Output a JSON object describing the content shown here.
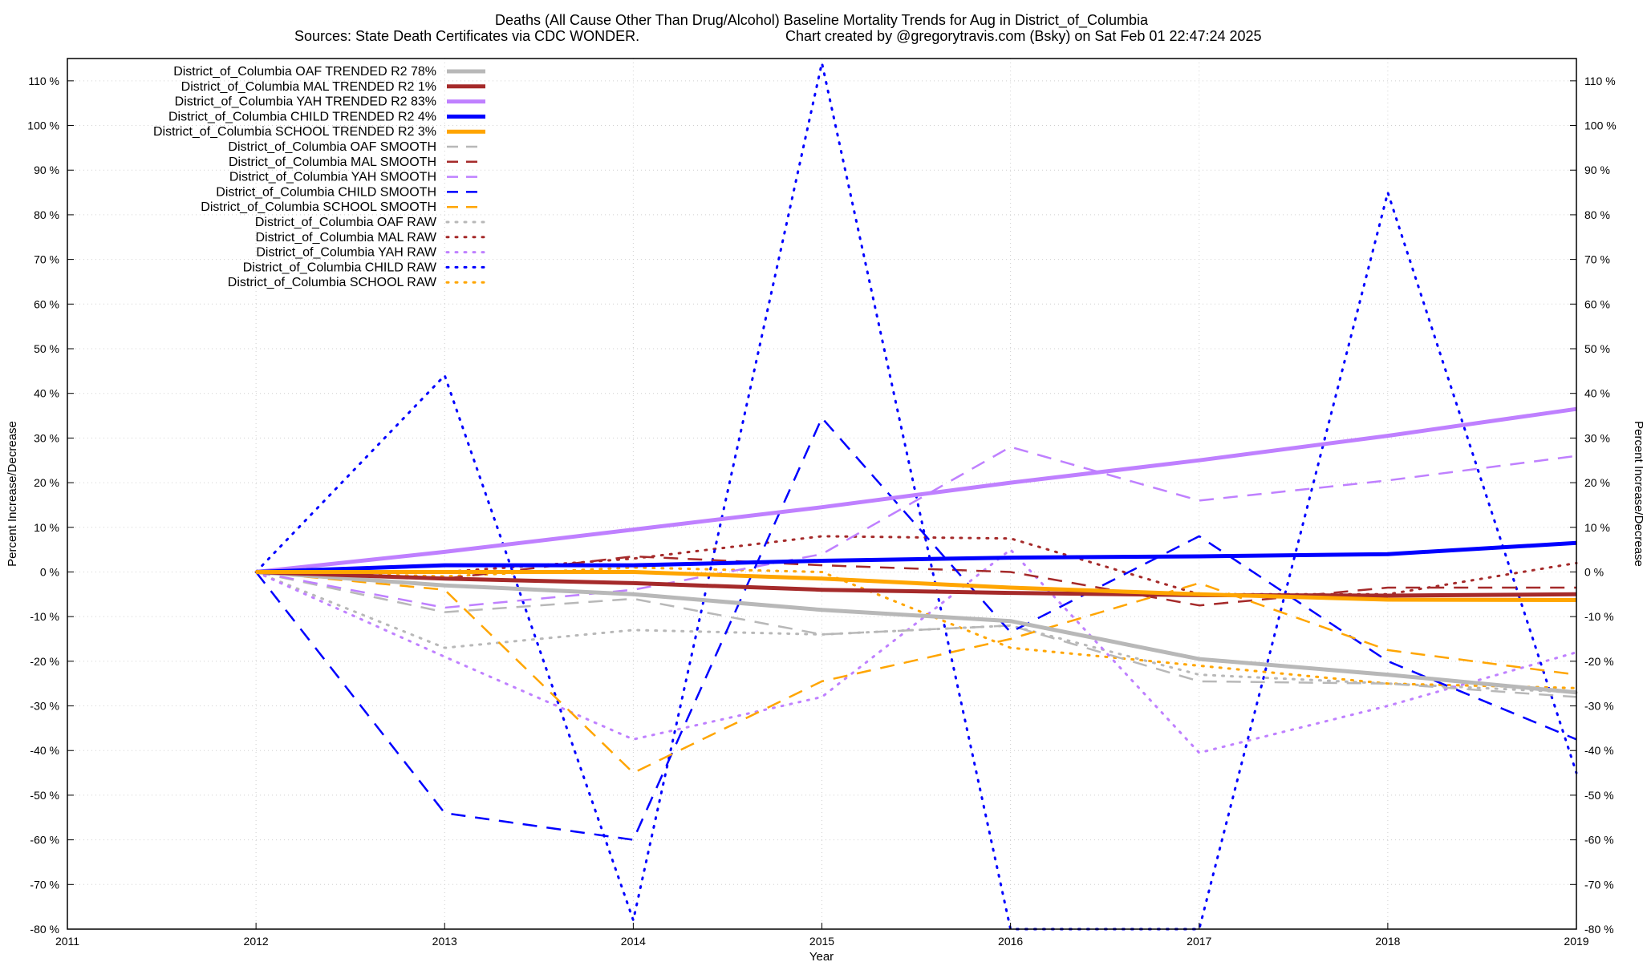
{
  "chart_data": {
    "type": "line",
    "title": "Deaths (All Cause Other Than Drug/Alcohol)  Baseline Mortality Trends for Aug in District_of_Columbia",
    "subtitle_left": "Sources: State Death Certificates via CDC WONDER.",
    "subtitle_right": "Chart created by @gregorytravis.com (Bsky) on Sat Feb 01 22:47:24 2025",
    "xlabel": "Year",
    "ylabel": "Percent Increase/Decrease",
    "y2label": "Percent Increase/Decrease",
    "xlim": [
      2011,
      2019
    ],
    "ylim": [
      -80,
      115
    ],
    "xticks": [
      2011,
      2012,
      2013,
      2014,
      2015,
      2016,
      2017,
      2018,
      2019
    ],
    "xtick_labels": [
      "2011",
      "2012",
      "2013",
      "2014",
      "2015",
      "2016",
      "2017",
      "2018",
      "2019"
    ],
    "yticks": [
      110,
      100,
      90,
      80,
      70,
      60,
      50,
      40,
      30,
      20,
      10,
      0,
      -10,
      -20,
      -30,
      -40,
      -50,
      -60,
      -70,
      -80
    ],
    "ytick_labels": [
      "110 %",
      "100 %",
      "90 %",
      "80 %",
      "70 %",
      "60 %",
      "50 %",
      "40 %",
      "30 %",
      "20 %",
      "10 %",
      "0 %",
      "-10 %",
      "-20 %",
      "-30 %",
      "-40 %",
      "-50 %",
      "-60 %",
      "-70 %",
      "-80 %"
    ],
    "grid": true,
    "legend_position": "top-left",
    "series": [
      {
        "name": "District_of_Columbia OAF TRENDED R2  78%",
        "style": "solid",
        "color": "#b8b8b8",
        "points": [
          [
            2012,
            0
          ],
          [
            2013,
            -3
          ],
          [
            2014,
            -5
          ],
          [
            2015,
            -8.5
          ],
          [
            2016,
            -11
          ],
          [
            2017,
            -19.5
          ],
          [
            2018,
            -23
          ],
          [
            2019,
            -27
          ]
        ]
      },
      {
        "name": "District_of_Columbia MAL TRENDED R2   1%",
        "style": "solid",
        "color": "#a52a2a",
        "points": [
          [
            2012,
            0
          ],
          [
            2013,
            -1.5
          ],
          [
            2014,
            -2.5
          ],
          [
            2015,
            -4
          ],
          [
            2016,
            -4.7
          ],
          [
            2017,
            -5.2
          ],
          [
            2018,
            -5.3
          ],
          [
            2019,
            -5
          ]
        ]
      },
      {
        "name": "District_of_Columbia YAH TRENDED R2  83%",
        "style": "solid",
        "color": "#bf80ff",
        "points": [
          [
            2012,
            0
          ],
          [
            2013,
            4.5
          ],
          [
            2014,
            9.5
          ],
          [
            2015,
            14.5
          ],
          [
            2016,
            20
          ],
          [
            2017,
            25
          ],
          [
            2018,
            30.5
          ],
          [
            2019,
            36.5
          ]
        ]
      },
      {
        "name": "District_of_Columbia CHILD TRENDED R2   4%",
        "style": "solid",
        "color": "#0000ff",
        "points": [
          [
            2012,
            0
          ],
          [
            2013,
            1.5
          ],
          [
            2014,
            1.5
          ],
          [
            2015,
            2.5
          ],
          [
            2016,
            3.2
          ],
          [
            2017,
            3.5
          ],
          [
            2018,
            4
          ],
          [
            2019,
            6.5
          ]
        ]
      },
      {
        "name": "District_of_Columbia SCHOOL TRENDED R2   3%",
        "style": "solid",
        "color": "#ffa500",
        "points": [
          [
            2012,
            0
          ],
          [
            2013,
            0
          ],
          [
            2014,
            0
          ],
          [
            2015,
            -1.5
          ],
          [
            2016,
            -3.5
          ],
          [
            2017,
            -5
          ],
          [
            2018,
            -6.2
          ],
          [
            2019,
            -6.3
          ]
        ]
      },
      {
        "name": "District_of_Columbia OAF SMOOTH",
        "style": "dashed",
        "color": "#b8b8b8",
        "points": [
          [
            2012,
            0
          ],
          [
            2013,
            -9
          ],
          [
            2014,
            -6
          ],
          [
            2015,
            -14
          ],
          [
            2016,
            -12
          ],
          [
            2017,
            -24.5
          ],
          [
            2018,
            -25
          ],
          [
            2019,
            -28
          ]
        ]
      },
      {
        "name": "District_of_Columbia MAL SMOOTH",
        "style": "dashed",
        "color": "#a52a2a",
        "points": [
          [
            2012,
            0
          ],
          [
            2013,
            -1.5
          ],
          [
            2014,
            3.5
          ],
          [
            2015,
            1.5
          ],
          [
            2016,
            0
          ],
          [
            2017,
            -7.5
          ],
          [
            2018,
            -3.5
          ],
          [
            2019,
            -3.5
          ]
        ]
      },
      {
        "name": "District_of_Columbia YAH SMOOTH",
        "style": "dashed",
        "color": "#bf80ff",
        "points": [
          [
            2012,
            0
          ],
          [
            2013,
            -8
          ],
          [
            2014,
            -4
          ],
          [
            2015,
            4
          ],
          [
            2016,
            28
          ],
          [
            2017,
            16
          ],
          [
            2018,
            20.5
          ],
          [
            2019,
            26
          ]
        ]
      },
      {
        "name": "District_of_Columbia CHILD SMOOTH",
        "style": "dashed",
        "color": "#0000ff",
        "points": [
          [
            2012,
            0
          ],
          [
            2013,
            -54
          ],
          [
            2014,
            -60
          ],
          [
            2015,
            34.5
          ],
          [
            2016,
            -13.5
          ],
          [
            2017,
            8
          ],
          [
            2018,
            -20
          ],
          [
            2019,
            -37.5
          ]
        ]
      },
      {
        "name": "District_of_Columbia SCHOOL SMOOTH",
        "style": "dashed",
        "color": "#ffa500",
        "points": [
          [
            2012,
            0
          ],
          [
            2013,
            -4
          ],
          [
            2014,
            -45
          ],
          [
            2015,
            -24.5
          ],
          [
            2016,
            -15
          ],
          [
            2017,
            -2.5
          ],
          [
            2018,
            -17.5
          ],
          [
            2019,
            -23
          ]
        ]
      },
      {
        "name": "District_of_Columbia OAF RAW",
        "style": "dotted",
        "color": "#b8b8b8",
        "points": [
          [
            2012,
            0
          ],
          [
            2013,
            -17
          ],
          [
            2014,
            -13
          ],
          [
            2015,
            -14
          ],
          [
            2016,
            -12
          ],
          [
            2017,
            -23
          ],
          [
            2018,
            -25
          ],
          [
            2019,
            -27
          ]
        ]
      },
      {
        "name": "District_of_Columbia MAL RAW",
        "style": "dotted",
        "color": "#a52a2a",
        "points": [
          [
            2012,
            0
          ],
          [
            2013,
            0
          ],
          [
            2014,
            3
          ],
          [
            2015,
            8
          ],
          [
            2016,
            7.5
          ],
          [
            2017,
            -5
          ],
          [
            2018,
            -5
          ],
          [
            2019,
            2
          ]
        ]
      },
      {
        "name": "District_of_Columbia YAH RAW",
        "style": "dotted",
        "color": "#bf80ff",
        "points": [
          [
            2012,
            0
          ],
          [
            2013,
            -19
          ],
          [
            2014,
            -37.5
          ],
          [
            2015,
            -28
          ],
          [
            2016,
            5
          ],
          [
            2017,
            -40.5
          ],
          [
            2018,
            -30
          ],
          [
            2019,
            -18
          ]
        ]
      },
      {
        "name": "District_of_Columbia CHILD RAW",
        "style": "dotted",
        "color": "#0000ff",
        "points": [
          [
            2012,
            0
          ],
          [
            2013,
            44
          ],
          [
            2014,
            -78
          ],
          [
            2015,
            114
          ],
          [
            2016,
            -80
          ],
          [
            2017,
            -80
          ],
          [
            2018,
            85
          ],
          [
            2019,
            -45
          ]
        ]
      },
      {
        "name": "District_of_Columbia SCHOOL RAW",
        "style": "dotted",
        "color": "#ffa500",
        "points": [
          [
            2012,
            0
          ],
          [
            2013,
            -1
          ],
          [
            2014,
            1
          ],
          [
            2015,
            0
          ],
          [
            2016,
            -17
          ],
          [
            2017,
            -21
          ],
          [
            2018,
            -25
          ],
          [
            2019,
            -26
          ]
        ]
      }
    ]
  }
}
